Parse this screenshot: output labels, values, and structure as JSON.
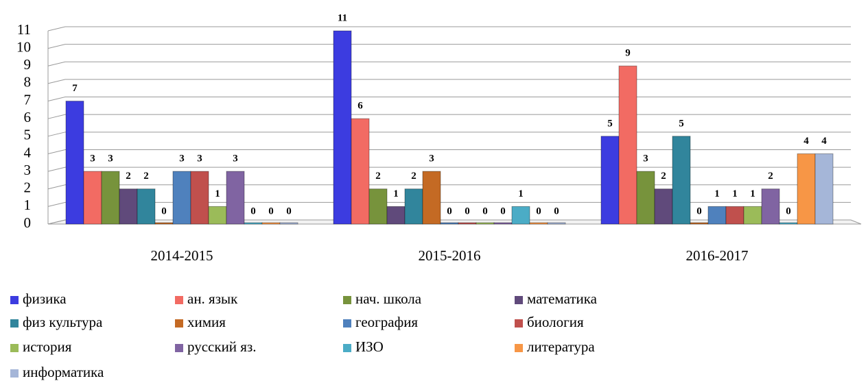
{
  "chart_data": {
    "type": "bar",
    "categories": [
      "2014-2015",
      "2015-2016",
      "2016-2017"
    ],
    "series": [
      {
        "name": "физика",
        "color": "#3c3ce0",
        "values": [
          7,
          11,
          5
        ]
      },
      {
        "name": "ан. язык",
        "color": "#f26b63",
        "values": [
          3,
          6,
          9
        ]
      },
      {
        "name": "нач. школа",
        "color": "#77933c",
        "values": [
          3,
          2,
          3
        ]
      },
      {
        "name": "математика",
        "color": "#604a7b",
        "values": [
          2,
          1,
          2
        ]
      },
      {
        "name": "физ культура",
        "color": "#31859c",
        "values": [
          2,
          2,
          5
        ]
      },
      {
        "name": "химия",
        "color": "#c46a24",
        "values": [
          0,
          3,
          0
        ]
      },
      {
        "name": "география",
        "color": "#4f81bd",
        "values": [
          3,
          0,
          1
        ]
      },
      {
        "name": "биология",
        "color": "#c0504d",
        "values": [
          3,
          0,
          1
        ]
      },
      {
        "name": "история",
        "color": "#9bbb59",
        "values": [
          1,
          0,
          1
        ]
      },
      {
        "name": "русский яз.",
        "color": "#8064a2",
        "values": [
          3,
          0,
          2
        ]
      },
      {
        "name": "ИЗО",
        "color": "#4bacc6",
        "values": [
          0,
          1,
          0
        ]
      },
      {
        "name": "литература",
        "color": "#f79646",
        "values": [
          0,
          0,
          4
        ]
      },
      {
        "name": "информатика",
        "color": "#a5b6d8",
        "values": [
          0,
          0,
          4
        ]
      }
    ],
    "ylim": [
      0,
      11
    ],
    "yticks": [
      0,
      1,
      2,
      3,
      4,
      5,
      6,
      7,
      8,
      9,
      10,
      11
    ],
    "grid": true,
    "legend": "bottom"
  }
}
